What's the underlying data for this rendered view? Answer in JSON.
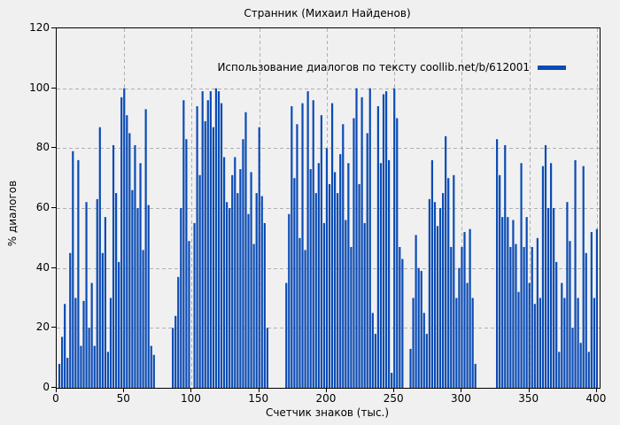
{
  "title": "Странник (Михаил Найденов)",
  "legend": {
    "label": "Использование диалогов по тексту coollib.net/b/612001"
  },
  "axes": {
    "y_label": "% диалогов",
    "x_label": "Счетчик знаков (тыс.)",
    "y_ticks": [
      0,
      20,
      40,
      60,
      80,
      100,
      120
    ],
    "x_ticks": [
      0,
      50,
      100,
      150,
      200,
      250,
      300,
      350,
      400
    ]
  },
  "colors": {
    "bar": "#0b4bb4",
    "grid": "#b0b0b0",
    "frame": "#000000",
    "background": "#f0f0f0"
  },
  "chart_data": {
    "type": "bar",
    "title": "Странник (Михаил Найденов)",
    "series_label": "Использование диалогов по тексту coollib.net/b/612001",
    "xlabel": "Счетчик знаков (тыс.)",
    "ylabel": "% диалогов",
    "xlim": [
      0,
      402
    ],
    "ylim": [
      0,
      120
    ],
    "grid": true,
    "legend_position": "top-right-inside",
    "x_start": 0,
    "x_step": 2,
    "values": [
      0,
      8,
      17,
      28,
      10,
      45,
      79,
      30,
      76,
      14,
      29,
      62,
      20,
      35,
      14,
      63,
      87,
      45,
      57,
      12,
      30,
      81,
      65,
      42,
      97,
      100,
      91,
      85,
      66,
      81,
      60,
      75,
      46,
      93,
      61,
      14,
      11,
      0,
      0,
      0,
      0,
      0,
      0,
      20,
      24,
      37,
      60,
      96,
      83,
      49,
      0,
      55,
      94,
      71,
      99,
      89,
      96,
      99,
      87,
      100,
      99,
      95,
      77,
      62,
      60,
      71,
      77,
      65,
      73,
      83,
      92,
      58,
      72,
      48,
      65,
      87,
      64,
      55,
      20,
      0,
      0,
      0,
      0,
      0,
      0,
      35,
      58,
      94,
      70,
      88,
      50,
      95,
      46,
      99,
      73,
      96,
      65,
      75,
      91,
      55,
      80,
      68,
      95,
      72,
      65,
      78,
      88,
      56,
      75,
      47,
      90,
      100,
      68,
      97,
      55,
      85,
      100,
      25,
      18,
      94,
      75,
      98,
      99,
      76,
      5,
      100,
      90,
      47,
      43,
      0,
      0,
      13,
      30,
      51,
      40,
      39,
      25,
      18,
      63,
      76,
      62,
      54,
      60,
      65,
      84,
      70,
      47,
      71,
      30,
      40,
      47,
      52,
      35,
      53,
      30,
      8,
      0,
      0,
      0,
      0,
      0,
      0,
      0,
      83,
      71,
      57,
      81,
      57,
      47,
      56,
      48,
      32,
      75,
      47,
      57,
      35,
      47,
      28,
      50,
      30,
      74,
      81,
      60,
      75,
      60,
      42,
      12,
      35,
      30,
      62,
      49,
      20,
      76,
      30,
      15,
      74,
      45,
      12,
      52,
      30,
      53
    ]
  }
}
